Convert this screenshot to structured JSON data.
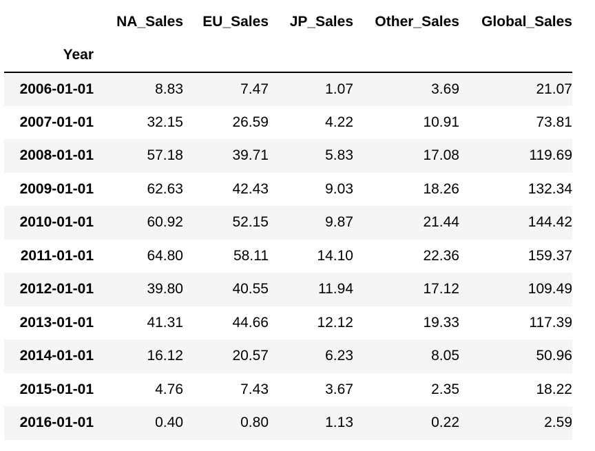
{
  "table": {
    "columns": [
      "NA_Sales",
      "EU_Sales",
      "JP_Sales",
      "Other_Sales",
      "Global_Sales"
    ],
    "index_name": "Year",
    "rows": [
      {
        "index": "2006-01-01",
        "values": [
          "8.83",
          "7.47",
          "1.07",
          "3.69",
          "21.07"
        ]
      },
      {
        "index": "2007-01-01",
        "values": [
          "32.15",
          "26.59",
          "4.22",
          "10.91",
          "73.81"
        ]
      },
      {
        "index": "2008-01-01",
        "values": [
          "57.18",
          "39.71",
          "5.83",
          "17.08",
          "119.69"
        ]
      },
      {
        "index": "2009-01-01",
        "values": [
          "62.63",
          "42.43",
          "9.03",
          "18.26",
          "132.34"
        ]
      },
      {
        "index": "2010-01-01",
        "values": [
          "60.92",
          "52.15",
          "9.87",
          "21.44",
          "144.42"
        ]
      },
      {
        "index": "2011-01-01",
        "values": [
          "64.80",
          "58.11",
          "14.10",
          "22.36",
          "159.37"
        ]
      },
      {
        "index": "2012-01-01",
        "values": [
          "39.80",
          "40.55",
          "11.94",
          "17.12",
          "109.49"
        ]
      },
      {
        "index": "2013-01-01",
        "values": [
          "41.31",
          "44.66",
          "12.12",
          "19.33",
          "117.39"
        ]
      },
      {
        "index": "2014-01-01",
        "values": [
          "16.12",
          "20.57",
          "6.23",
          "8.05",
          "50.96"
        ]
      },
      {
        "index": "2015-01-01",
        "values": [
          "4.76",
          "7.43",
          "3.67",
          "2.35",
          "18.22"
        ]
      },
      {
        "index": "2016-01-01",
        "values": [
          "0.40",
          "0.80",
          "1.13",
          "0.22",
          "2.59"
        ]
      }
    ]
  }
}
